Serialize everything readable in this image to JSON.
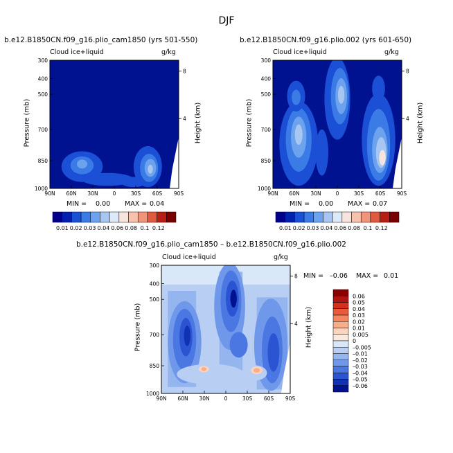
{
  "figure": {
    "title": "DJF"
  },
  "chart_data": [
    {
      "type": "heatmap",
      "panel": "top-left",
      "title": "b.e12.B1850CN.f09_g16.plio_cam1850 (yrs 501-550)",
      "field_label": "Cloud ice+liquid",
      "units": "g/kg",
      "xlabel": "",
      "ylabel": "Pressure (mb)",
      "y2label": "Height (km)",
      "x_ticks": [
        "90N",
        "60N",
        "30N",
        "0",
        "30S",
        "60S",
        "90S"
      ],
      "y_ticks": [
        "300",
        "400",
        "500",
        "700",
        "850",
        "1000"
      ],
      "y2_ticks": [
        "8",
        "4"
      ],
      "min_label": "MIN =",
      "min_value": "0.00",
      "max_label": "MAX =",
      "max_value": "0.04",
      "colorbar_labels": [
        "0.01",
        "0.02",
        "0.03",
        "0.04",
        "0.06",
        "0.08",
        "0.1",
        "0.12"
      ],
      "max_numeric": 0.04
    },
    {
      "type": "heatmap",
      "panel": "top-right",
      "title": "b.e12.B1850CN.f09_g16.plio.002 (yrs 601-650)",
      "field_label": "Cloud ice+liquid",
      "units": "g/kg",
      "xlabel": "",
      "ylabel": "Pressure (mb)",
      "y2label": "Height (km)",
      "x_ticks": [
        "90N",
        "60N",
        "30N",
        "0",
        "30S",
        "60S",
        "90S"
      ],
      "y_ticks": [
        "300",
        "400",
        "500",
        "700",
        "850",
        "1000"
      ],
      "y2_ticks": [
        "8",
        "4"
      ],
      "min_label": "MIN =",
      "min_value": "0.00",
      "max_label": "MAX =",
      "max_value": "0.07",
      "colorbar_labels": [
        "0.01",
        "0.02",
        "0.03",
        "0.04",
        "0.06",
        "0.08",
        "0.1",
        "0.12"
      ],
      "max_numeric": 0.07
    },
    {
      "type": "heatmap",
      "panel": "bottom",
      "title": "b.e12.B1850CN.f09_g16.plio_cam1850 – b.e12.B1850CN.f09_g16.plio.002",
      "field_label": "Cloud ice+liquid",
      "units": "g/kg",
      "xlabel": "",
      "ylabel": "Pressure (mb)",
      "y2label": "Height (km)",
      "x_ticks": [
        "90N",
        "60N",
        "30N",
        "0",
        "30S",
        "60S",
        "90S"
      ],
      "y_ticks": [
        "300",
        "400",
        "500",
        "700",
        "850",
        "1000"
      ],
      "y2_ticks": [
        "8",
        "4"
      ],
      "min_label": "MIN =",
      "min_value": "–0.06",
      "max_label": "MAX =",
      "max_value": "0.01",
      "colorbar_labels": [
        "0.06",
        "0.05",
        "0.04",
        "0.03",
        "0.02",
        "0.01",
        "0.005",
        "0",
        "–0.005",
        "–0.01",
        "–0.02",
        "–0.03",
        "–0.04",
        "–0.05",
        "–0.06"
      ]
    }
  ],
  "colors": {
    "seq_scale": [
      "#00008b",
      "#0020b0",
      "#1a4fd6",
      "#3a7be6",
      "#6da2ee",
      "#a8c6f2",
      "#dbe9f8",
      "#f7e4dc",
      "#f6c2ad",
      "#f0947a",
      "#e05a3f",
      "#b81f14",
      "#7a0000"
    ],
    "seq_background": "#00128f",
    "diff_scale": [
      "#8b0000",
      "#b21414",
      "#d3301f",
      "#ea5a3a",
      "#f4875f",
      "#f8ae8c",
      "#fbd3be",
      "#fae9de",
      "#d9e8f8",
      "#b8cff3",
      "#95b5ef",
      "#6f97ea",
      "#4b77e2",
      "#2a54d2",
      "#1232b4",
      "#00128f"
    ]
  }
}
